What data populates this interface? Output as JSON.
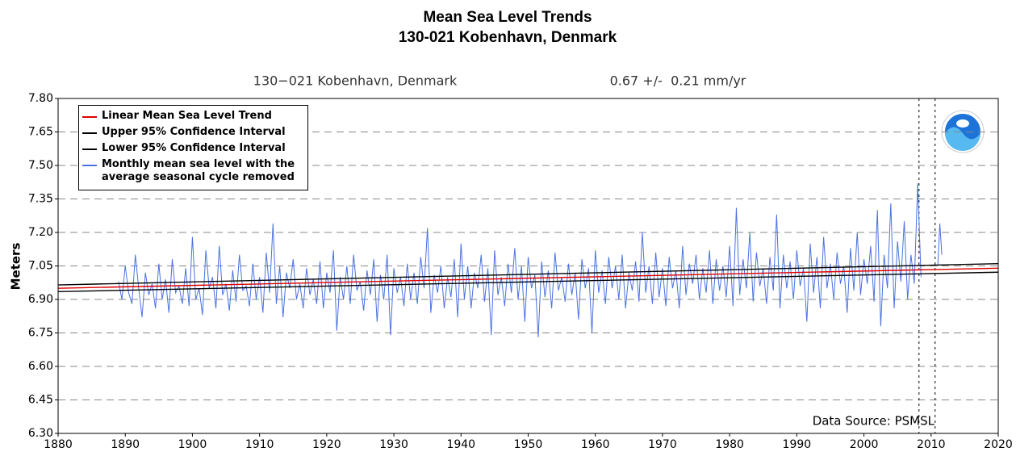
{
  "chart_data": {
    "type": "line",
    "title": "Mean Sea Level Trends",
    "subtitle": "130-021 Kobenhavn, Denmark",
    "plot_header": "130−021 Kobenhavn, Denmark",
    "trend_rate": "0.67 +/-  0.21 mm/yr",
    "y_label": "Meters",
    "source": "Data Source: PSMSL",
    "xlim": [
      1880,
      2020
    ],
    "xticks": [
      1880,
      1890,
      1900,
      1910,
      1920,
      1930,
      1940,
      1950,
      1960,
      1970,
      1980,
      1990,
      2000,
      2010,
      2020
    ],
    "ylim": [
      6.3,
      7.8
    ],
    "yticks": [
      {
        "value": 6.3,
        "label": "6.30"
      },
      {
        "value": 6.45,
        "label": "6.45"
      },
      {
        "value": 6.6,
        "label": "6.60"
      },
      {
        "value": 6.75,
        "label": "6.75"
      },
      {
        "value": 6.9,
        "label": "6.90"
      },
      {
        "value": 7.05,
        "label": "7.05"
      },
      {
        "value": 7.2,
        "label": "7.20"
      },
      {
        "value": 7.35,
        "label": "7.35"
      },
      {
        "value": 7.5,
        "label": "7.50"
      },
      {
        "value": 7.65,
        "label": "7.65"
      },
      {
        "value": 7.8,
        "label": "7.80"
      }
    ],
    "grid": true,
    "legend": "upper-left",
    "vlines": [
      2008.2,
      2010.6
    ],
    "series": [
      {
        "name": "Linear Mean Sea Level Trend",
        "color": "#e00000",
        "x": [
          1880,
          2020
        ],
        "values": [
          6.95,
          7.04
        ]
      },
      {
        "name": "Upper 95% Confidence Interval",
        "color": "#000000",
        "x": [
          1880,
          2020
        ],
        "values": [
          6.965,
          7.06
        ]
      },
      {
        "name": "Lower 95% Confidence Interval",
        "color": "#000000",
        "x": [
          1880,
          2020
        ],
        "values": [
          6.935,
          7.022
        ]
      },
      {
        "name": "Monthly mean sea level with the average seasonal cycle removed",
        "color": "#4a72e0",
        "x": [
          1889,
          1889.5,
          1890,
          1890.5,
          1891,
          1891.5,
          1892,
          1892.5,
          1893,
          1893.5,
          1894,
          1894.5,
          1895,
          1895.5,
          1896,
          1896.5,
          1897,
          1897.5,
          1898,
          1898.5,
          1899,
          1899.5,
          1900,
          1900.5,
          1901,
          1901.5,
          1902,
          1902.5,
          1903,
          1903.5,
          1904,
          1904.5,
          1905,
          1905.5,
          1906,
          1906.5,
          1907,
          1907.5,
          1908,
          1908.5,
          1909,
          1909.5,
          1910,
          1910.5,
          1911,
          1911.5,
          1912,
          1912.5,
          1913,
          1913.5,
          1914,
          1914.5,
          1915,
          1915.5,
          1916,
          1916.5,
          1917,
          1917.5,
          1918,
          1918.5,
          1919,
          1919.5,
          1920,
          1920.5,
          1921,
          1921.5,
          1922,
          1922.5,
          1923,
          1923.5,
          1924,
          1924.5,
          1925,
          1925.5,
          1926,
          1926.5,
          1927,
          1927.5,
          1928,
          1928.5,
          1929,
          1929.5,
          1930,
          1930.5,
          1931,
          1931.5,
          1932,
          1932.5,
          1933,
          1933.5,
          1934,
          1934.5,
          1935,
          1935.5,
          1936,
          1936.5,
          1937,
          1937.5,
          1938,
          1938.5,
          1939,
          1939.5,
          1940,
          1940.5,
          1941,
          1941.5,
          1942,
          1942.5,
          1943,
          1943.5,
          1944,
          1944.5,
          1945,
          1945.5,
          1946,
          1946.5,
          1947,
          1947.5,
          1948,
          1948.5,
          1949,
          1949.5,
          1950,
          1950.5,
          1951,
          1951.5,
          1952,
          1952.5,
          1953,
          1953.5,
          1954,
          1954.5,
          1955,
          1955.5,
          1956,
          1956.5,
          1957,
          1957.5,
          1958,
          1958.5,
          1959,
          1959.5,
          1960,
          1960.5,
          1961,
          1961.5,
          1962,
          1962.5,
          1963,
          1963.5,
          1964,
          1964.5,
          1965,
          1965.5,
          1966,
          1966.5,
          1967,
          1967.5,
          1968,
          1968.5,
          1969,
          1969.5,
          1970,
          1970.5,
          1971,
          1971.5,
          1972,
          1972.5,
          1973,
          1973.5,
          1974,
          1974.5,
          1975,
          1975.5,
          1976,
          1976.5,
          1977,
          1977.5,
          1978,
          1978.5,
          1979,
          1979.5,
          1980,
          1980.5,
          1981,
          1981.5,
          1982,
          1982.5,
          1983,
          1983.5,
          1984,
          1984.5,
          1985,
          1985.5,
          1986,
          1986.5,
          1987,
          1987.5,
          1988,
          1988.5,
          1989,
          1989.5,
          1990,
          1990.5,
          1991,
          1991.5,
          1992,
          1992.5,
          1993,
          1993.5,
          1994,
          1994.5,
          1995,
          1995.5,
          1996,
          1996.5,
          1997,
          1997.5,
          1998,
          1998.5,
          1999,
          1999.5,
          2000,
          2000.5,
          2001,
          2001.5,
          2002,
          2002.5,
          2003,
          2003.5,
          2004,
          2004.5,
          2005,
          2005.5,
          2006,
          2006.5,
          2007,
          2007.5,
          2008,
          2008.5,
          2009,
          2011,
          2011.3,
          2011.6
        ],
        "values": [
          6.98,
          6.9,
          7.05,
          6.93,
          6.88,
          7.1,
          6.95,
          6.82,
          7.02,
          6.92,
          6.97,
          6.86,
          7.06,
          6.9,
          6.99,
          6.84,
          7.08,
          6.93,
          6.96,
          6.88,
          7.04,
          6.87,
          7.18,
          6.9,
          6.95,
          6.83,
          7.12,
          6.95,
          7.0,
          6.86,
          7.14,
          6.92,
          6.97,
          6.85,
          7.03,
          6.89,
          7.1,
          6.94,
          6.96,
          6.87,
          7.06,
          6.9,
          7.0,
          6.84,
          7.11,
          6.93,
          7.24,
          6.88,
          7.05,
          6.82,
          7.02,
          6.95,
          7.08,
          6.9,
          6.97,
          6.86,
          7.04,
          6.92,
          6.99,
          6.88,
          7.07,
          6.86,
          7.02,
          6.93,
          7.12,
          6.76,
          7.0,
          6.9,
          7.05,
          6.88,
          7.1,
          6.94,
          6.98,
          6.85,
          7.03,
          6.92,
          7.08,
          6.8,
          7.01,
          6.9,
          7.1,
          6.74,
          7.04,
          6.93,
          7.0,
          6.87,
          7.06,
          6.9,
          7.02,
          6.88,
          7.09,
          6.95,
          7.22,
          6.84,
          7.01,
          6.93,
          7.05,
          6.86,
          7.0,
          6.91,
          7.08,
          6.82,
          7.15,
          6.9,
          7.05,
          6.86,
          7.02,
          6.95,
          7.1,
          6.89,
          7.04,
          6.74,
          7.12,
          6.92,
          7.0,
          6.87,
          7.06,
          6.93,
          7.13,
          6.9,
          7.05,
          6.8,
          7.09,
          6.95,
          7.01,
          6.73,
          7.07,
          6.91,
          7.03,
          6.86,
          7.11,
          6.94,
          7.0,
          6.89,
          7.06,
          6.92,
          7.02,
          6.81,
          7.08,
          6.95,
          7.04,
          6.75,
          7.12,
          6.93,
          7.03,
          6.88,
          7.09,
          6.95,
          7.05,
          6.9,
          7.1,
          6.86,
          7.02,
          6.94,
          7.07,
          6.89,
          7.2,
          6.93,
          7.05,
          6.88,
          7.11,
          6.91,
          7.04,
          6.87,
          7.09,
          6.95,
          7.03,
          6.86,
          7.14,
          6.92,
          7.06,
          6.97,
          7.1,
          6.9,
          7.04,
          6.93,
          7.12,
          6.88,
          7.08,
          6.94,
          7.05,
          6.91,
          7.14,
          6.87,
          7.31,
          6.92,
          7.08,
          6.95,
          7.2,
          6.89,
          7.11,
          6.96,
          7.04,
          6.88,
          7.09,
          6.94,
          7.28,
          6.86,
          7.1,
          6.95,
          7.07,
          6.9,
          7.12,
          6.96,
          7.04,
          6.8,
          7.15,
          6.93,
          7.09,
          6.86,
          7.18,
          6.95,
          7.06,
          6.9,
          7.11,
          6.97,
          7.05,
          6.84,
          7.13,
          6.94,
          7.2,
          6.92,
          7.08,
          6.97,
          7.14,
          6.89,
          7.3,
          6.78,
          7.1,
          6.95,
          7.33,
          6.86,
          7.16,
          6.98,
          7.25,
          6.9,
          7.1,
          6.97,
          7.42,
          7.0,
          null,
          7.05,
          7.24,
          7.1
        ]
      }
    ]
  }
}
